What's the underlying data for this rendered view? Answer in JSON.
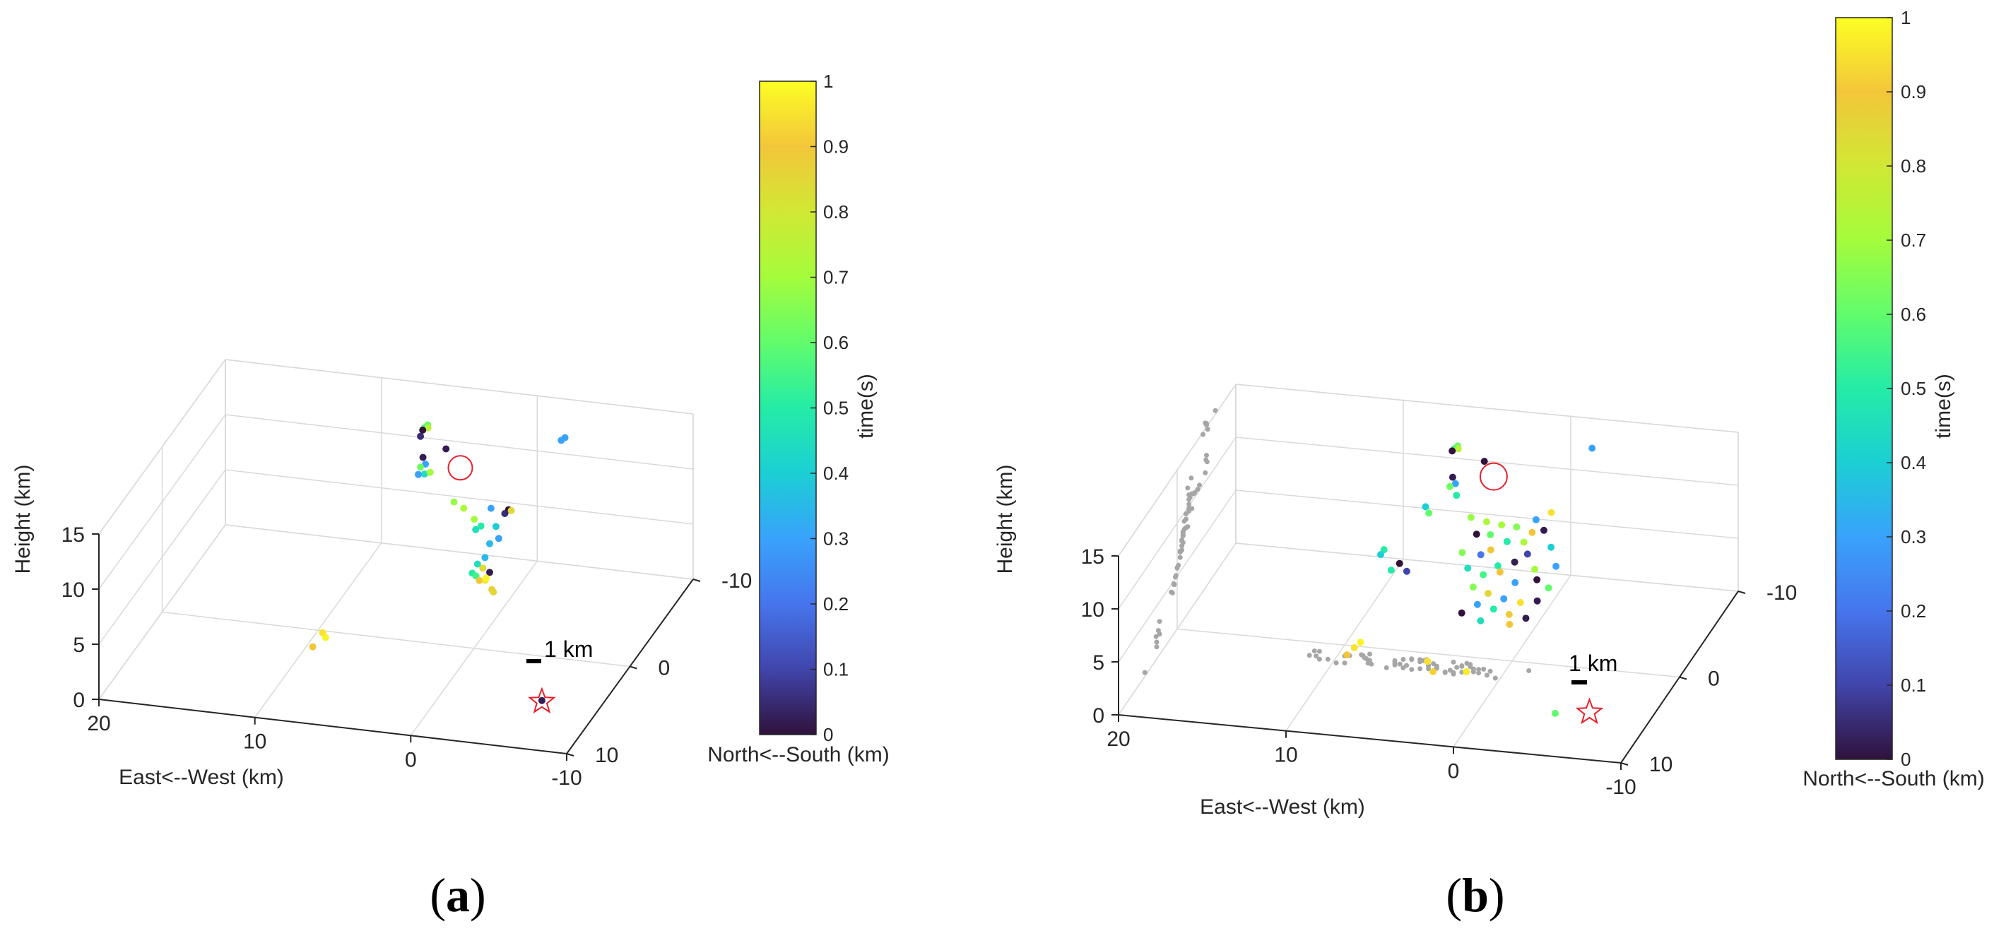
{
  "chart_data": [
    {
      "type": "scatter",
      "panel_label": "(a)",
      "dimensions": "3d",
      "xlabel": "East<--West (km)",
      "ylabel": "North<--South (km)",
      "zlabel": "Height (km)",
      "x_ticks": [
        "20",
        "10",
        "0",
        "-10"
      ],
      "y_ticks": [
        "-10",
        "0",
        "10"
      ],
      "z_ticks": [
        "0",
        "5",
        "10",
        "15"
      ],
      "xlim": [
        -10,
        20
      ],
      "ylim": [
        -10,
        10
      ],
      "zlim": [
        0,
        15
      ],
      "grid": true,
      "colorbar": {
        "label": "time(s)",
        "range": [
          0,
          1
        ],
        "ticks": [
          "0",
          "0.1",
          "0.2",
          "0.3",
          "0.4",
          "0.5",
          "0.6",
          "0.7",
          "0.8",
          "0.9",
          "1"
        ]
      },
      "scale_bar_label": "1 km",
      "markers": [
        "red open circle near 12.8 km height",
        "red star at ground"
      ],
      "series": [
        {
          "name": "sources (colored by time)",
          "points": [
            {
              "x": 5,
              "y": -5,
              "z": 15.5,
              "t": 0.62
            },
            {
              "x": 5.2,
              "y": -5,
              "z": 15.2,
              "t": 0.55
            },
            {
              "x": 4.9,
              "y": -4.8,
              "z": 15.4,
              "t": 0.75
            },
            {
              "x": 5.4,
              "y": -5.2,
              "z": 14.8,
              "t": 0.0
            },
            {
              "x": 5.5,
              "y": -5.1,
              "z": 14.3,
              "t": 0.05
            },
            {
              "x": 3.5,
              "y": -4.2,
              "z": 14.2,
              "t": 0.02
            },
            {
              "x": -3.2,
              "y": -6.5,
              "z": 14.5,
              "t": 0.3
            },
            {
              "x": -3.0,
              "y": -6.4,
              "z": 14.3,
              "t": 0.3
            },
            {
              "x": 5.3,
              "y": -5,
              "z": 12.5,
              "t": 0.02
            },
            {
              "x": 5.1,
              "y": -4.9,
              "z": 12.0,
              "t": 0.3
            },
            {
              "x": 5.5,
              "y": -5.1,
              "z": 11.5,
              "t": 0.62
            },
            {
              "x": 5.2,
              "y": -5,
              "z": 11.0,
              "t": 0.45
            },
            {
              "x": 5.6,
              "y": -5,
              "z": 10.9,
              "t": 0.3
            },
            {
              "x": 4.8,
              "y": -4.9,
              "z": 11.3,
              "t": 0.7
            },
            {
              "x": 2.5,
              "y": -3,
              "z": 10.5,
              "t": 0.68
            },
            {
              "x": 1.8,
              "y": -2.8,
              "z": 10.2,
              "t": 0.72
            },
            {
              "x": 0.8,
              "y": -2,
              "z": 10.0,
              "t": 0.7
            },
            {
              "x": -0.2,
              "y": -2.2,
              "z": 11.0,
              "t": 0.3
            },
            {
              "x": -1.2,
              "y": -2.5,
              "z": 10.8,
              "t": 0.0
            },
            {
              "x": -1.0,
              "y": -2.4,
              "z": 10.5,
              "t": 0.05
            },
            {
              "x": -1.5,
              "y": -2.2,
              "z": 11.0,
              "t": 0.85
            },
            {
              "x": 0.2,
              "y": -1.6,
              "z": 9.8,
              "t": 0.5
            },
            {
              "x": 0.5,
              "y": -1.5,
              "z": 9.5,
              "t": 0.45
            },
            {
              "x": -0.8,
              "y": -1.5,
              "z": 10.0,
              "t": 0.4
            },
            {
              "x": -1.1,
              "y": -1.2,
              "z": 9.2,
              "t": 0.3
            },
            {
              "x": -0.6,
              "y": -1.0,
              "z": 8.8,
              "t": 0.35
            },
            {
              "x": -0.3,
              "y": -1,
              "z": 7.5,
              "t": 0.35
            },
            {
              "x": 0.1,
              "y": -0.8,
              "z": 7.0,
              "t": 0.45
            },
            {
              "x": -0.2,
              "y": -0.9,
              "z": 6.6,
              "t": 0.85
            },
            {
              "x": -0.6,
              "y": -1,
              "z": 6.2,
              "t": 0.02
            },
            {
              "x": 0.4,
              "y": -0.7,
              "z": 6.2,
              "t": 0.5
            },
            {
              "x": 0.2,
              "y": -0.8,
              "z": 5.9,
              "t": 0.55
            },
            {
              "x": -0.1,
              "y": -0.6,
              "z": 5.7,
              "t": 0.9
            },
            {
              "x": -0.4,
              "y": -0.8,
              "z": 5.6,
              "t": 0.95
            },
            {
              "x": -0.5,
              "y": -0.7,
              "z": 5.9,
              "t": 0.98
            },
            {
              "x": -0.9,
              "y": -0.6,
              "z": 5.0,
              "t": 0.88
            },
            {
              "x": -1.0,
              "y": -0.6,
              "z": 4.8,
              "t": 0.85
            },
            {
              "x": 8.5,
              "y": 3,
              "z": 2.4,
              "t": 0.95
            },
            {
              "x": 8.3,
              "y": 3,
              "z": 2.0,
              "t": 0.98
            },
            {
              "x": 8.8,
              "y": 3.8,
              "z": 1.7,
              "t": 0.9
            },
            {
              "x": -6.3,
              "y": 4.8,
              "z": 0.1,
              "t": 0.02
            }
          ]
        }
      ]
    },
    {
      "type": "scatter",
      "panel_label": "(b)",
      "dimensions": "3d",
      "xlabel": "East<--West (km)",
      "ylabel": "North<--South (km)",
      "zlabel": "Height (km)",
      "x_ticks": [
        "20",
        "10",
        "0",
        "-10"
      ],
      "y_ticks": [
        "-10",
        "0",
        "10"
      ],
      "z_ticks": [
        "0",
        "5",
        "10",
        "15"
      ],
      "xlim": [
        -10,
        20
      ],
      "ylim": [
        -10,
        10
      ],
      "zlim": [
        0,
        15
      ],
      "grid": true,
      "colorbar": {
        "label": "time(s)",
        "range": [
          0,
          1
        ],
        "ticks": [
          "0",
          "0.1",
          "0.2",
          "0.3",
          "0.4",
          "0.5",
          "0.6",
          "0.7",
          "0.8",
          "0.9",
          "1"
        ]
      },
      "scale_bar_label": "1 km",
      "markers": [
        "red open circle near 13.8 km height",
        "red star at ground"
      ],
      "series": [
        {
          "name": "sources (colored by time)",
          "points": [
            {
              "x": 5,
              "y": -5,
              "z": 15.5,
              "t": 0.62
            },
            {
              "x": 5.2,
              "y": -5,
              "z": 15.2,
              "t": 0.55
            },
            {
              "x": 4.9,
              "y": -4.8,
              "z": 15.4,
              "t": 0.75
            },
            {
              "x": 5.4,
              "y": -5.2,
              "z": 14.8,
              "t": 0.0
            },
            {
              "x": 3.2,
              "y": -4.4,
              "z": 14.8,
              "t": 0.0
            },
            {
              "x": -2.5,
              "y": -6.5,
              "z": 15.2,
              "t": 0.3
            },
            {
              "x": 5.3,
              "y": -5,
              "z": 12.5,
              "t": 0.02
            },
            {
              "x": 5.1,
              "y": -4.9,
              "z": 12.0,
              "t": 0.3
            },
            {
              "x": 5.5,
              "y": -5.1,
              "z": 11.5,
              "t": 0.62
            },
            {
              "x": 5.0,
              "y": -4.8,
              "z": 11.0,
              "t": 0.5
            },
            {
              "x": 6.5,
              "y": -3.8,
              "z": 10.5,
              "t": 0.4
            },
            {
              "x": 6.2,
              "y": -3.5,
              "z": 10.2,
              "t": 0.6
            },
            {
              "x": 3.5,
              "y": -3,
              "z": 10.6,
              "t": 0.68
            },
            {
              "x": 2.5,
              "y": -2.8,
              "z": 10.5,
              "t": 0.72
            },
            {
              "x": 1.5,
              "y": -2.5,
              "z": 10.6,
              "t": 0.7
            },
            {
              "x": 0.5,
              "y": -2.2,
              "z": 10.8,
              "t": 0.65
            },
            {
              "x": -0.5,
              "y": -2,
              "z": 10.6,
              "t": 0.9
            },
            {
              "x": -1.2,
              "y": -2,
              "z": 10.9,
              "t": 0.02
            },
            {
              "x": -0.8,
              "y": -1.8,
              "z": 12.0,
              "t": 0.3
            },
            {
              "x": -1.5,
              "y": -2.4,
              "z": 12.3,
              "t": 0.95
            },
            {
              "x": 2.0,
              "y": -2,
              "z": 10.0,
              "t": 0.6
            },
            {
              "x": 3.0,
              "y": -2.5,
              "z": 9.5,
              "t": 0.0
            },
            {
              "x": 1.0,
              "y": -2,
              "z": 9.5,
              "t": 0.5
            },
            {
              "x": 0.0,
              "y": -2,
              "z": 9.6,
              "t": 0.72
            },
            {
              "x": -1.8,
              "y": -1.5,
              "z": 9.8,
              "t": 0.4
            },
            {
              "x": -0.5,
              "y": -1.2,
              "z": 9.2,
              "t": 0.1
            },
            {
              "x": 1.8,
              "y": -1.5,
              "z": 9.0,
              "t": 0.9
            },
            {
              "x": 3.5,
              "y": -1.5,
              "z": 8.5,
              "t": 0.65
            },
            {
              "x": 2.5,
              "y": -1.8,
              "z": 8.2,
              "t": 0.2
            },
            {
              "x": 1.2,
              "y": -1.0,
              "z": 8.0,
              "t": 0.5
            },
            {
              "x": 0.2,
              "y": -1.0,
              "z": 8.5,
              "t": 0.02
            },
            {
              "x": -1.0,
              "y": -1.0,
              "z": 8.0,
              "t": 0.7
            },
            {
              "x": -2.2,
              "y": -1.2,
              "z": 8.3,
              "t": 0.3
            },
            {
              "x": 3.0,
              "y": -1.0,
              "z": 7.5,
              "t": 0.45
            },
            {
              "x": 2.0,
              "y": -0.8,
              "z": 7.2,
              "t": 0.55
            },
            {
              "x": 1.0,
              "y": -0.8,
              "z": 7.6,
              "t": 0.9
            },
            {
              "x": 0.0,
              "y": -0.5,
              "z": 7.0,
              "t": 0.3
            },
            {
              "x": -1.2,
              "y": -0.8,
              "z": 7.2,
              "t": 0.0
            },
            {
              "x": -2.0,
              "y": -0.5,
              "z": 6.8,
              "t": 0.6
            },
            {
              "x": 8.0,
              "y": -1.0,
              "z": 8.5,
              "t": 0.5
            },
            {
              "x": 8.2,
              "y": -1.0,
              "z": 8.0,
              "t": 0.4
            },
            {
              "x": 7.0,
              "y": -0.8,
              "z": 7.5,
              "t": 0.0
            },
            {
              "x": 6.5,
              "y": -0.6,
              "z": 7.0,
              "t": 0.1
            },
            {
              "x": 7.5,
              "y": -0.8,
              "z": 6.8,
              "t": 0.5
            },
            {
              "x": 2.5,
              "y": -0.5,
              "z": 6.2,
              "t": 0.65
            },
            {
              "x": 1.5,
              "y": -0.2,
              "z": 6.0,
              "t": 0.85
            },
            {
              "x": 0.5,
              "y": 0,
              "z": 5.8,
              "t": 0.3
            },
            {
              "x": -0.5,
              "y": 0,
              "z": 5.6,
              "t": 0.95
            },
            {
              "x": -1.5,
              "y": 0,
              "z": 5.9,
              "t": 0.02
            },
            {
              "x": 2.0,
              "y": 0.2,
              "z": 5.2,
              "t": 0.3
            },
            {
              "x": 1.0,
              "y": 0.3,
              "z": 5.0,
              "t": 0.5
            },
            {
              "x": 0.0,
              "y": 0.5,
              "z": 4.8,
              "t": 0.88
            },
            {
              "x": -1.0,
              "y": 0.5,
              "z": 4.6,
              "t": 0.02
            },
            {
              "x": 2.8,
              "y": 0.6,
              "z": 4.6,
              "t": 0.0
            },
            {
              "x": 1.6,
              "y": 0.8,
              "z": 4.2,
              "t": 0.45
            },
            {
              "x": -0.2,
              "y": 1.0,
              "z": 4.3,
              "t": 0.9
            },
            {
              "x": 8.0,
              "y": 3,
              "z": 3.0,
              "t": 0.98
            },
            {
              "x": 8.3,
              "y": 3.2,
              "z": 2.6,
              "t": 0.95
            },
            {
              "x": 8.6,
              "y": 3.6,
              "z": 2.2,
              "t": 0.9
            },
            {
              "x": 4.0,
              "y": 3,
              "z": 1.8,
              "t": 0.95
            },
            {
              "x": 3.5,
              "y": 3.5,
              "z": 1.3,
              "t": 0.92
            },
            {
              "x": 1.5,
              "y": 3.5,
              "z": 1.6,
              "t": 0.97
            },
            {
              "x": -4.5,
              "y": 5.5,
              "z": 0.2,
              "t": 0.6
            }
          ]
        },
        {
          "name": "projections (gray)",
          "color": "#a6a6a6"
        }
      ]
    }
  ]
}
